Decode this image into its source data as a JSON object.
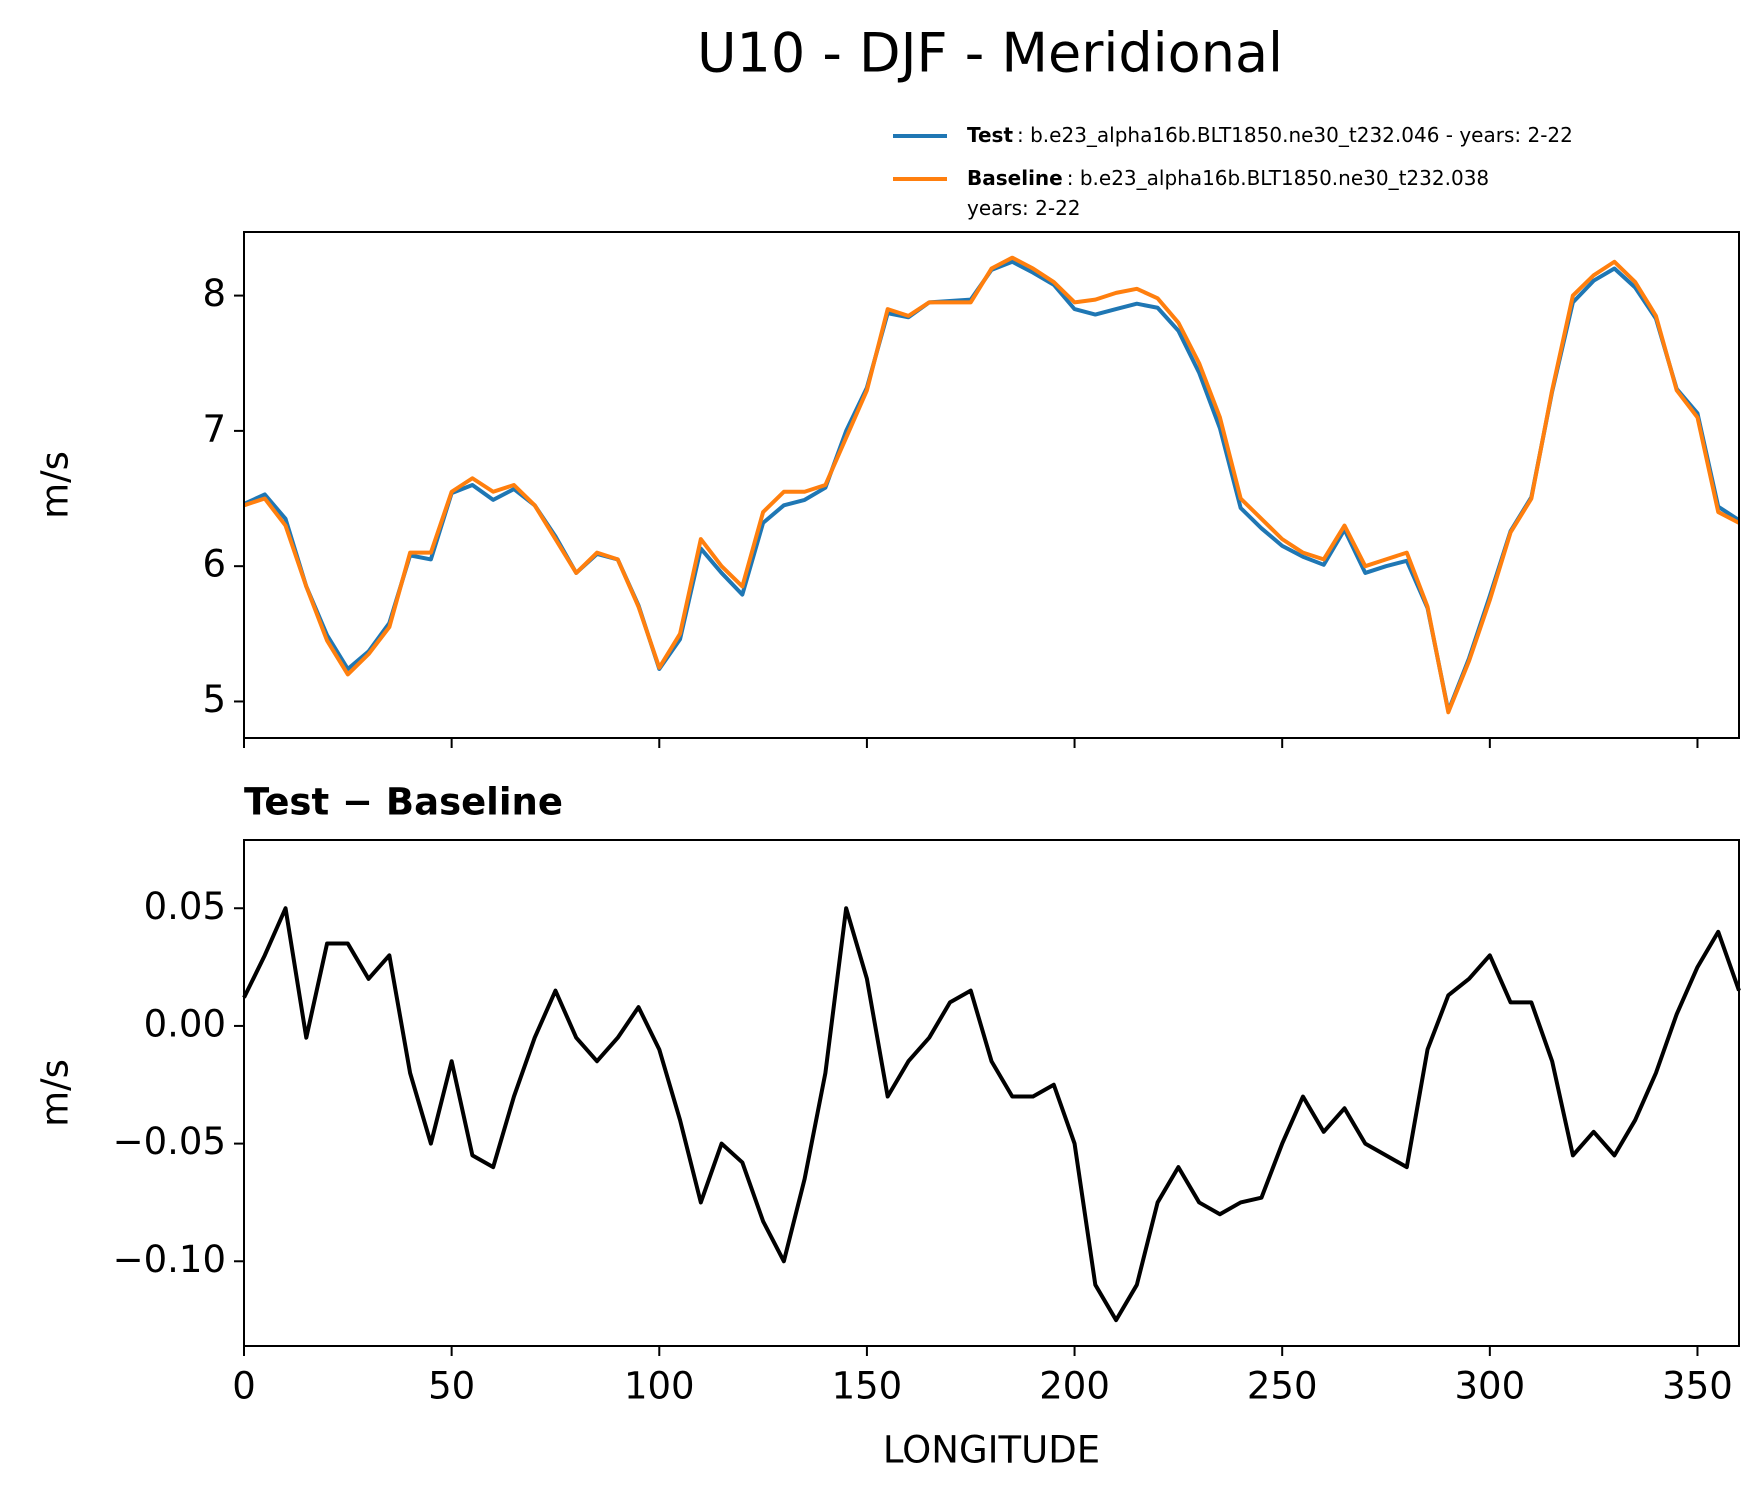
{
  "title": "U10 - DJF - Meridional",
  "chart_data": [
    {
      "type": "line",
      "ylabel": "m/s",
      "x": [
        0,
        5,
        10,
        15,
        20,
        25,
        30,
        35,
        40,
        45,
        50,
        55,
        60,
        65,
        70,
        75,
        80,
        85,
        90,
        95,
        100,
        105,
        110,
        115,
        120,
        125,
        130,
        135,
        140,
        145,
        150,
        155,
        160,
        165,
        170,
        175,
        180,
        185,
        190,
        195,
        200,
        205,
        210,
        215,
        220,
        225,
        230,
        235,
        240,
        245,
        250,
        255,
        260,
        265,
        270,
        275,
        280,
        285,
        290,
        295,
        300,
        305,
        310,
        315,
        320,
        325,
        330,
        335,
        340,
        345,
        350,
        355,
        360
      ],
      "series": [
        {
          "name": "Test",
          "description": [
            ": b.e23_alpha16b.BLT1850.ne30_t232.046 - years: 2-22"
          ],
          "color": "#1f77b4",
          "values": [
            6.46,
            6.53,
            6.35,
            5.85,
            5.49,
            5.24,
            5.37,
            5.58,
            6.08,
            6.05,
            6.54,
            6.6,
            6.49,
            6.57,
            6.45,
            6.22,
            5.95,
            6.09,
            6.05,
            5.71,
            5.24,
            5.46,
            6.13,
            5.95,
            5.79,
            6.32,
            6.45,
            6.49,
            6.58,
            7.0,
            7.32,
            7.87,
            7.84,
            7.95,
            7.96,
            7.97,
            8.19,
            8.25,
            8.17,
            8.08,
            7.9,
            7.86,
            7.9,
            7.94,
            7.91,
            7.74,
            7.43,
            7.02,
            6.43,
            6.28,
            6.15,
            6.07,
            6.01,
            6.27,
            5.95,
            6.0,
            6.04,
            5.69,
            4.93,
            5.32,
            5.78,
            6.26,
            6.51,
            7.29,
            7.95,
            8.11,
            8.2,
            8.06,
            7.83,
            7.31,
            7.13,
            6.44,
            6.34
          ]
        },
        {
          "name": "Baseline",
          "description": [
            ": b.e23_alpha16b.BLT1850.ne30_t232.038",
            "years: 2-22"
          ],
          "color": "#ff7f0e",
          "values": [
            6.45,
            6.5,
            6.3,
            5.85,
            5.45,
            5.2,
            5.35,
            5.55,
            6.1,
            6.1,
            6.55,
            6.65,
            6.55,
            6.6,
            6.45,
            6.2,
            5.95,
            6.1,
            6.05,
            5.7,
            5.25,
            5.5,
            6.2,
            6.0,
            5.85,
            6.4,
            6.55,
            6.55,
            6.6,
            6.95,
            7.3,
            7.9,
            7.85,
            7.95,
            7.95,
            7.95,
            8.2,
            8.28,
            8.2,
            8.1,
            7.95,
            7.97,
            8.02,
            8.05,
            7.98,
            7.8,
            7.5,
            7.1,
            6.5,
            6.35,
            6.2,
            6.1,
            6.05,
            6.3,
            6.0,
            6.05,
            6.1,
            5.7,
            4.92,
            5.3,
            5.75,
            6.25,
            6.5,
            7.3,
            8.0,
            8.15,
            8.25,
            8.1,
            7.85,
            7.3,
            7.1,
            6.4,
            6.32
          ]
        }
      ],
      "xlim": [
        0,
        360
      ],
      "xticks": [
        0,
        50,
        100,
        150,
        200,
        250,
        300,
        350
      ],
      "ylim": [
        4.73,
        8.47
      ],
      "yticks": [
        5,
        6,
        7,
        8
      ],
      "legend": "upper right"
    },
    {
      "type": "line",
      "title": "Test − Baseline",
      "xlabel": "LONGITUDE",
      "ylabel": "m/s",
      "x": [
        0,
        5,
        10,
        15,
        20,
        25,
        30,
        35,
        40,
        45,
        50,
        55,
        60,
        65,
        70,
        75,
        80,
        85,
        90,
        95,
        100,
        105,
        110,
        115,
        120,
        125,
        130,
        135,
        140,
        145,
        150,
        155,
        160,
        165,
        170,
        175,
        180,
        185,
        190,
        195,
        200,
        205,
        210,
        215,
        220,
        225,
        230,
        235,
        240,
        245,
        250,
        255,
        260,
        265,
        270,
        275,
        280,
        285,
        290,
        295,
        300,
        305,
        310,
        315,
        320,
        325,
        330,
        335,
        340,
        345,
        350,
        355,
        360
      ],
      "series": [
        {
          "color": "#000000",
          "values": [
            0.012,
            0.03,
            0.05,
            -0.005,
            0.035,
            0.035,
            0.02,
            0.03,
            -0.02,
            -0.05,
            -0.015,
            -0.055,
            -0.06,
            -0.03,
            -0.005,
            0.015,
            -0.005,
            -0.015,
            -0.005,
            0.008,
            -0.01,
            -0.04,
            -0.075,
            -0.05,
            -0.058,
            -0.083,
            -0.1,
            -0.065,
            -0.02,
            0.05,
            0.02,
            -0.03,
            -0.015,
            -0.005,
            0.01,
            0.015,
            -0.015,
            -0.03,
            -0.03,
            -0.025,
            -0.05,
            -0.11,
            -0.125,
            -0.11,
            -0.075,
            -0.06,
            -0.075,
            -0.08,
            -0.075,
            -0.073,
            -0.05,
            -0.03,
            -0.045,
            -0.035,
            -0.05,
            -0.055,
            -0.06,
            -0.01,
            0.013,
            0.02,
            0.03,
            0.01,
            0.01,
            -0.015,
            -0.055,
            -0.045,
            -0.055,
            -0.04,
            -0.02,
            0.005,
            0.025,
            0.04,
            0.015
          ]
        }
      ],
      "xlim": [
        0,
        360
      ],
      "xticks": [
        0,
        50,
        100,
        150,
        200,
        250,
        300,
        350
      ],
      "ylim": [
        -0.136,
        0.079
      ],
      "yticks": [
        0.05,
        {
          "value": 0,
          "label": "0.00"
        },
        {
          "value": -0.05,
          "label": "−0.05"
        },
        {
          "value": -0.1,
          "label": "−0.10"
        }
      ]
    }
  ]
}
